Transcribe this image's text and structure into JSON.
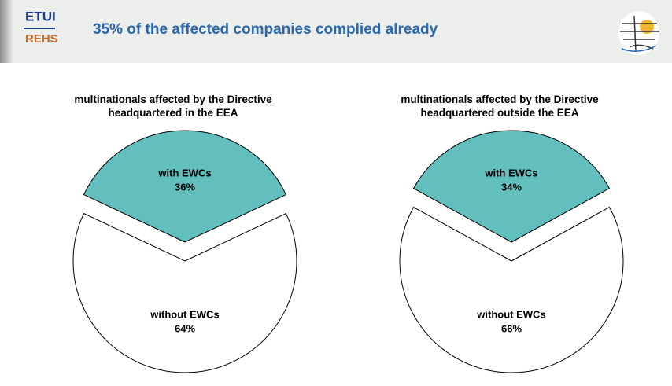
{
  "header": {
    "logo_top": "ETUI",
    "logo_bottom": "REHS",
    "title": "35% of the affected companies complied already"
  },
  "chart_data": [
    {
      "type": "pie",
      "title": "multinationals affected by the Directive headquartered in the EEA",
      "categories": [
        "with EWCs",
        "without EWCs"
      ],
      "values": [
        36,
        64
      ],
      "value_labels": [
        "36%",
        "64%"
      ],
      "colors": [
        "#62bfbd",
        "#ffffff"
      ]
    },
    {
      "type": "pie",
      "title": "multinationals affected by the Directive headquartered outside the EEA",
      "categories": [
        "with EWCs",
        "without EWCs"
      ],
      "values": [
        34,
        66
      ],
      "value_labels": [
        "34%",
        "66%"
      ],
      "colors": [
        "#62bfbd",
        "#ffffff"
      ]
    }
  ]
}
